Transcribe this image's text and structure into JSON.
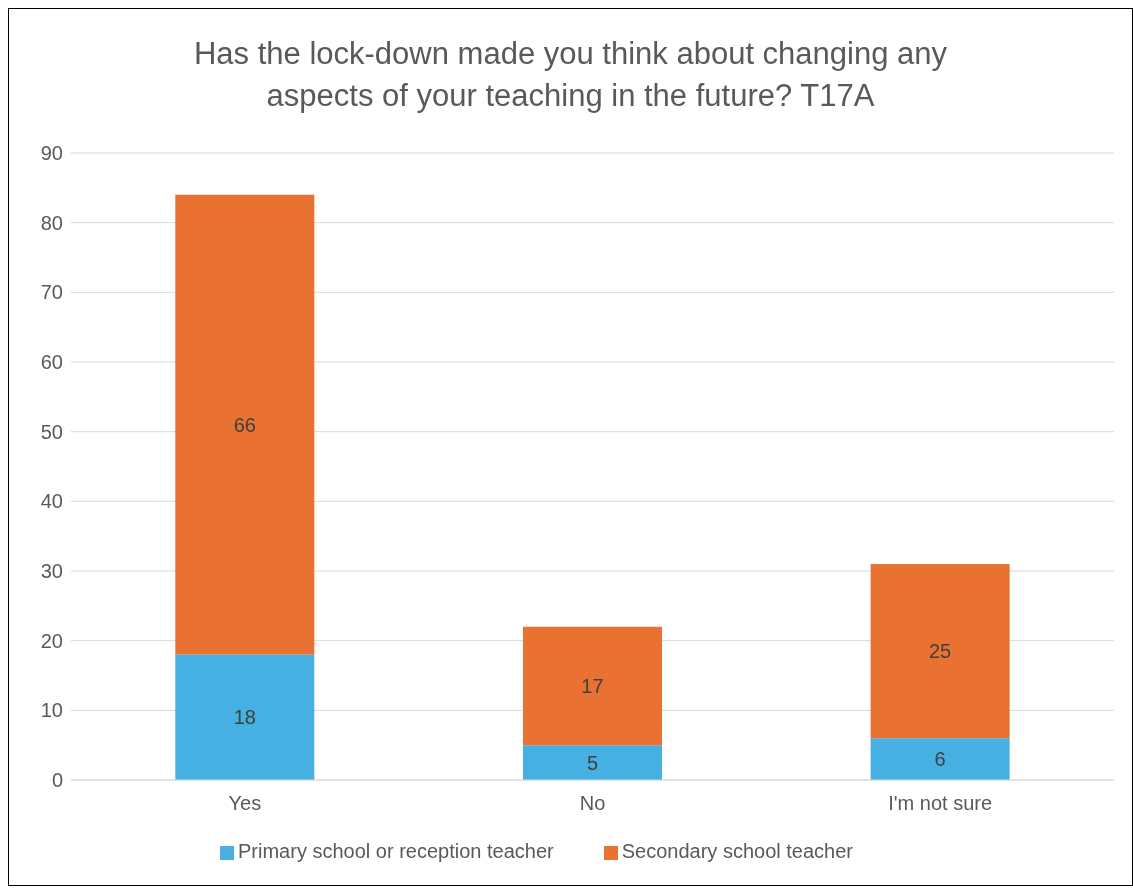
{
  "chart_data": {
    "type": "bar",
    "title": "Has the lock-down made you think about changing any aspects of your teaching in the future? T17A",
    "categories": [
      "Yes",
      "No",
      "I'm not sure"
    ],
    "series": [
      {
        "name": "Primary school or reception teacher",
        "color": "#45b0e1",
        "values": [
          18,
          5,
          6
        ]
      },
      {
        "name": "Secondary school teacher",
        "color": "#e97132",
        "values": [
          66,
          17,
          25
        ]
      }
    ],
    "stacked": true,
    "ylim": [
      0,
      90
    ],
    "yticks": [
      0,
      10,
      20,
      30,
      40,
      50,
      60,
      70,
      80,
      90
    ],
    "grid": "y",
    "legend": "bottom",
    "data_labels": true
  }
}
